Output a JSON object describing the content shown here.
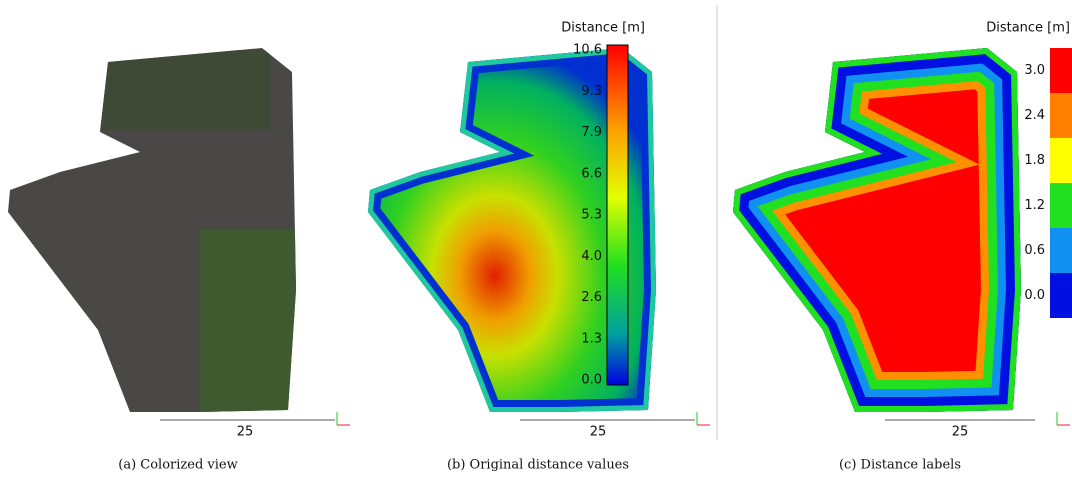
{
  "panels": [
    {
      "caption": "(a) Colorized view",
      "scale_label": "25"
    },
    {
      "caption": "(b) Original distance values",
      "scale_label": "25",
      "colorbar": {
        "title": "Distance [m]",
        "ticks": [
          "10.6",
          "9.3",
          "7.9",
          "6.6",
          "5.3",
          "4.0",
          "2.6",
          "1.3",
          "0.0"
        ]
      }
    },
    {
      "caption": "(c) Distance labels",
      "scale_label": "25",
      "colorbar": {
        "title": "Distance [m]",
        "ticks": [
          "3.0",
          "2.4",
          "1.8",
          "1.2",
          "0.6",
          "0.0"
        ]
      }
    }
  ]
}
